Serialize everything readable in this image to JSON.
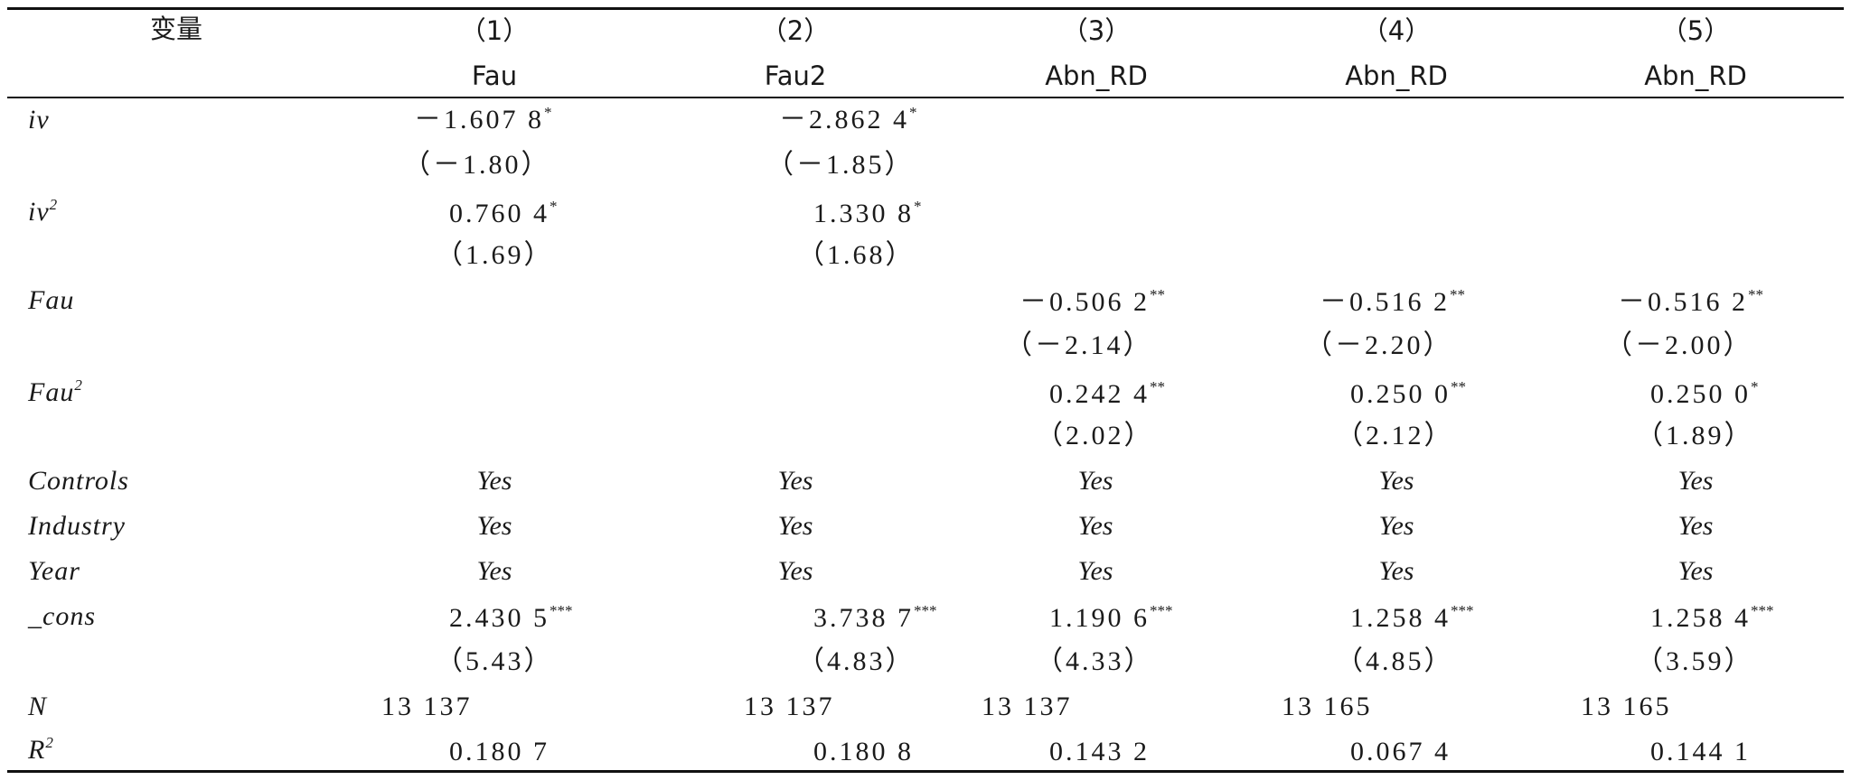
{
  "header": {
    "variable_label": "变量",
    "columns": [
      {
        "number": "（1）",
        "name": "Fau"
      },
      {
        "number": "（2）",
        "name": "Fau2"
      },
      {
        "number": "（3）",
        "name": "Abn_RD"
      },
      {
        "number": "（4）",
        "name": "Abn_RD"
      },
      {
        "number": "（5）",
        "name": "Abn_RD"
      }
    ]
  },
  "rows": {
    "iv": {
      "label": "iv",
      "coef": [
        "－1.607 8",
        "－2.862 4"
      ],
      "stars": [
        "*",
        "*"
      ],
      "t": [
        "（－1.80）",
        "（－1.85）"
      ]
    },
    "iv2": {
      "label": "iv",
      "label_sup": "2",
      "coef": [
        "0.760 4",
        "1.330 8"
      ],
      "stars": [
        "*",
        "*"
      ],
      "t": [
        "（1.69）",
        "（1.68）"
      ]
    },
    "fau": {
      "label": "Fau",
      "coef": [
        "－0.506 2",
        "－0.516 2",
        "－0.516 2"
      ],
      "stars": [
        "**",
        "**",
        "**"
      ],
      "t": [
        "（－2.14）",
        "（－2.20）",
        "（－2.00）"
      ]
    },
    "fau2": {
      "label": "Fau",
      "label_sup": "2",
      "coef": [
        "0.242 4",
        "0.250 0",
        "0.250 0"
      ],
      "stars": [
        "**",
        "**",
        "*"
      ],
      "t": [
        "（2.02）",
        "（2.12）",
        "（1.89）"
      ]
    },
    "controls": {
      "label": "Controls",
      "values": [
        "Yes",
        "Yes",
        "Yes",
        "Yes",
        "Yes"
      ]
    },
    "industry": {
      "label": "Industry",
      "values": [
        "Yes",
        "Yes",
        "Yes",
        "Yes",
        "Yes"
      ]
    },
    "year": {
      "label": "Year",
      "values": [
        "Yes",
        "Yes",
        "Yes",
        "Yes",
        "Yes"
      ]
    },
    "cons": {
      "label": "_cons",
      "coef": [
        "2.430 5",
        "3.738 7",
        "1.190 6",
        "1.258 4",
        "1.258 4"
      ],
      "stars": [
        "***",
        "***",
        "***",
        "***",
        "***"
      ],
      "t": [
        "（5.43）",
        "（4.83）",
        "（4.33）",
        "（4.85）",
        "（3.59）"
      ]
    },
    "n": {
      "label": "N",
      "values": [
        "13 137",
        "13 137",
        "13 137",
        "13 165",
        "13 165"
      ]
    },
    "r2": {
      "label": "R",
      "label_sup": "2",
      "values": [
        "0.180 7",
        "0.180 8",
        "0.143 2",
        "0.067 4",
        "0.144 1"
      ]
    }
  }
}
